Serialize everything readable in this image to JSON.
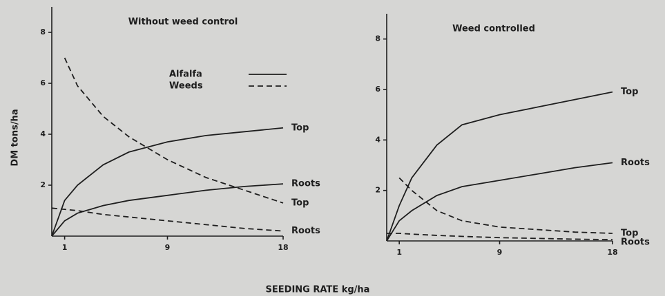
{
  "xlabel": "SEEDING RATE kg/ha",
  "chart_data": [
    {
      "type": "line",
      "title": "Without weed control",
      "ylabel": "DM tons/ha",
      "legend": [
        {
          "name": "Alfalfa",
          "style": "solid"
        },
        {
          "name": "Weeds",
          "style": "dashed"
        }
      ],
      "x": [
        0,
        1,
        2,
        4,
        6,
        9,
        12,
        15,
        18
      ],
      "xlim": [
        0,
        18
      ],
      "xticks": [
        1,
        9,
        18
      ],
      "ylim": [
        0,
        9
      ],
      "yticks": [
        2,
        4,
        6,
        8
      ],
      "series": [
        {
          "name": "Top",
          "style": "solid",
          "color": "#1e1e1e",
          "values": [
            0,
            1.4,
            2.0,
            2.8,
            3.3,
            3.7,
            3.95,
            4.1,
            4.25
          ]
        },
        {
          "name": "Roots",
          "style": "solid",
          "color": "#1e1e1e",
          "values": [
            0,
            0.6,
            0.9,
            1.2,
            1.4,
            1.6,
            1.8,
            1.95,
            2.05
          ]
        },
        {
          "name": "Top",
          "style": "dashed",
          "color": "#1e1e1e",
          "values": [
            null,
            7.0,
            5.9,
            4.7,
            3.9,
            3.0,
            2.3,
            1.8,
            1.3
          ]
        },
        {
          "name": "Roots",
          "style": "dashed",
          "color": "#1e1e1e",
          "values": [
            1.1,
            1.05,
            1.0,
            0.85,
            0.75,
            0.6,
            0.45,
            0.3,
            0.2
          ]
        }
      ]
    },
    {
      "type": "line",
      "title": "Weed controlled",
      "x": [
        0,
        1,
        2,
        4,
        6,
        9,
        12,
        15,
        18
      ],
      "xlim": [
        0,
        18
      ],
      "xticks": [
        1,
        9,
        18
      ],
      "ylim": [
        0,
        9
      ],
      "yticks": [
        2,
        4,
        6,
        8
      ],
      "series": [
        {
          "name": "Top",
          "style": "solid",
          "color": "#1e1e1e",
          "values": [
            0,
            1.4,
            2.5,
            3.8,
            4.6,
            5.0,
            5.3,
            5.6,
            5.9
          ]
        },
        {
          "name": "Roots",
          "style": "solid",
          "color": "#1e1e1e",
          "values": [
            0,
            0.8,
            1.2,
            1.8,
            2.15,
            2.4,
            2.65,
            2.9,
            3.1
          ]
        },
        {
          "name": "Top",
          "style": "dashed",
          "color": "#1e1e1e",
          "values": [
            null,
            2.5,
            2.0,
            1.2,
            0.8,
            0.55,
            0.45,
            0.35,
            0.3
          ]
        },
        {
          "name": "Roots",
          "style": "dashed",
          "color": "#1e1e1e",
          "values": [
            0.3,
            0.3,
            0.27,
            0.22,
            0.18,
            0.13,
            0.1,
            0.07,
            0.05
          ]
        }
      ]
    }
  ]
}
